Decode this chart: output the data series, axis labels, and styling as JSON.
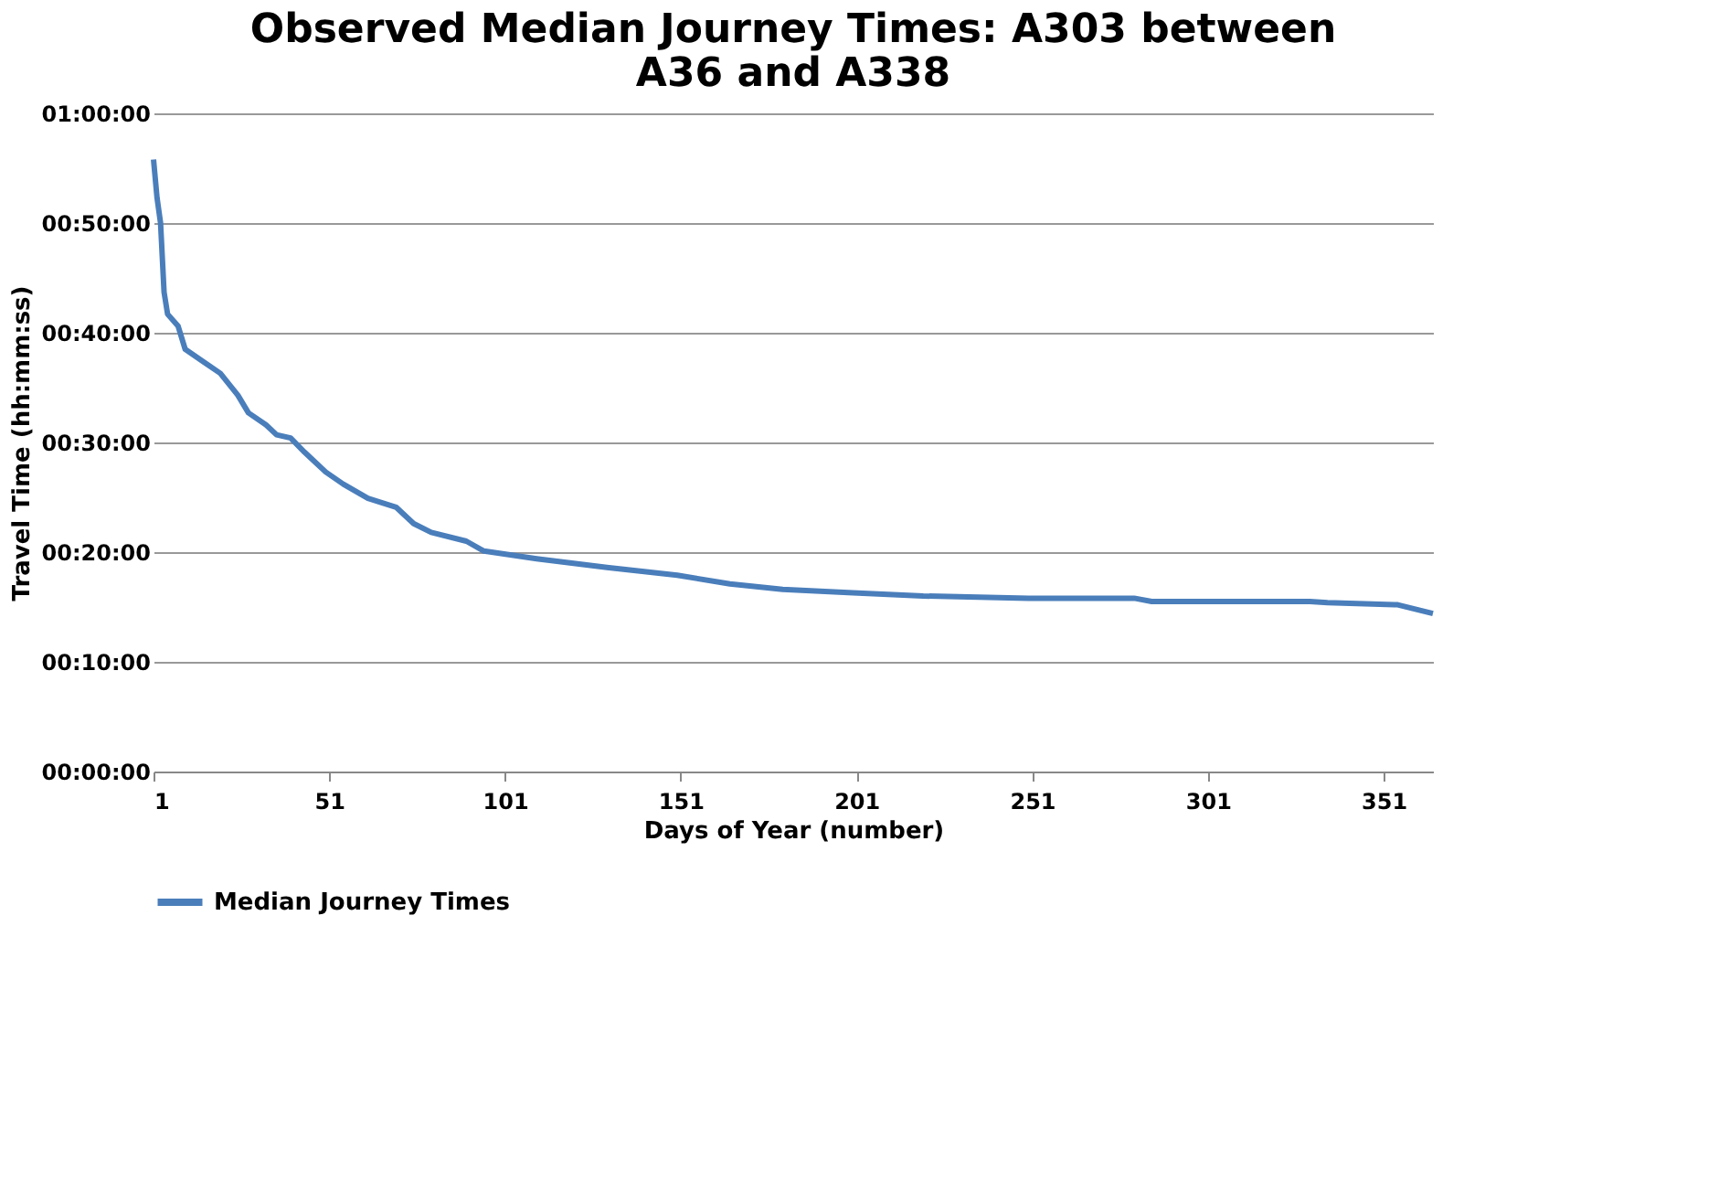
{
  "chart_data": {
    "type": "line",
    "title": [
      "Observed Median Journey Times: A303 between",
      "A36 and A338"
    ],
    "xlabel": "Days of Year (number)",
    "ylabel": "Travel Time (hh:mm:ss)",
    "series": [
      {
        "name": "Median Journey Times",
        "color": "#4a7ebb",
        "x": [
          1,
          2,
          3,
          4,
          5,
          8,
          10,
          15,
          20,
          25,
          28,
          33,
          36,
          40,
          44,
          50,
          55,
          62,
          70,
          75,
          80,
          90,
          95,
          110,
          130,
          150,
          165,
          180,
          200,
          220,
          250,
          280,
          285,
          330,
          335,
          355,
          365
        ],
        "values": [
          55.8,
          52.3,
          50,
          43.7,
          41.7,
          40.6,
          38.5,
          37.4,
          36.3,
          34.3,
          32.7,
          31.6,
          30.7,
          30.4,
          29.1,
          27.3,
          26.2,
          24.9,
          24.1,
          22.6,
          21.8,
          21.0,
          20.1,
          19.4,
          18.6,
          17.9,
          17.1,
          16.6,
          16.3,
          16.0,
          15.8,
          15.8,
          15.5,
          15.5,
          15.4,
          15.2,
          14.4
        ]
      }
    ],
    "xlim": [
      1,
      365
    ],
    "xticks": [
      1,
      51,
      101,
      151,
      201,
      251,
      301,
      351
    ],
    "ylim": [
      0,
      60
    ],
    "yticks": [
      {
        "value": 0,
        "label": "00:00:00"
      },
      {
        "value": 10,
        "label": "00:10:00"
      },
      {
        "value": 20,
        "label": "00:20:00"
      },
      {
        "value": 30,
        "label": "00:30:00"
      },
      {
        "value": 40,
        "label": "00:40:00"
      },
      {
        "value": 50,
        "label": "00:50:00"
      },
      {
        "value": 60,
        "label": "01:00:00"
      }
    ],
    "grid": "y",
    "legend": "bottom",
    "line_style": "solid",
    "marker": "none"
  }
}
